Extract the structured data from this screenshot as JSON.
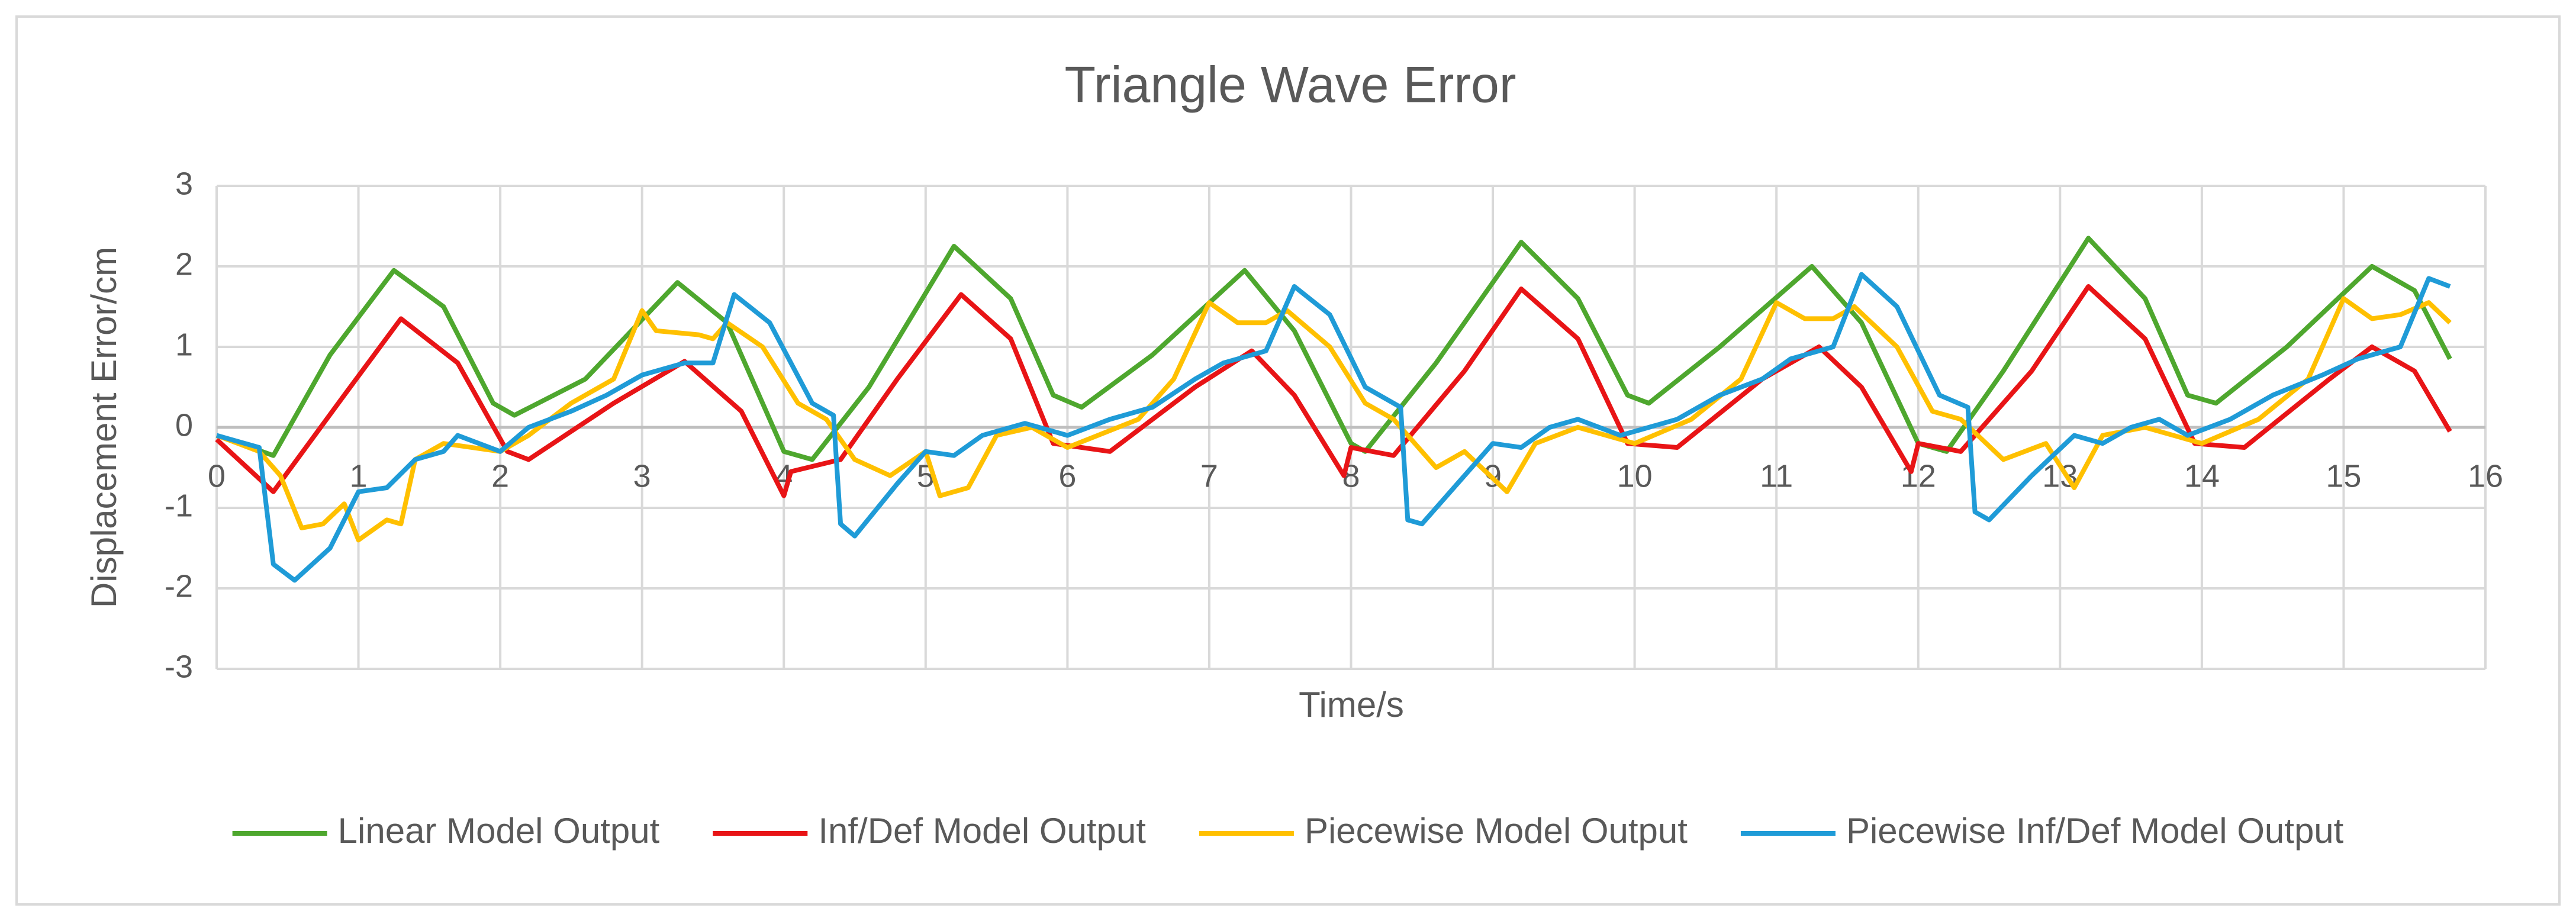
{
  "chart_data": {
    "type": "line",
    "title": "Triangle Wave Error",
    "x_label": "Time/s",
    "y_label": "Displacement Error/cm",
    "xlim": [
      0,
      16
    ],
    "ylim": [
      -3,
      3
    ],
    "xticks": [
      0,
      1,
      2,
      3,
      4,
      5,
      6,
      7,
      8,
      9,
      10,
      11,
      12,
      13,
      14,
      15,
      16
    ],
    "yticks": [
      -3,
      -2,
      -1,
      0,
      1,
      2,
      3
    ],
    "grid": true,
    "legend": "bottom",
    "series": [
      {
        "name": "Linear Model Output",
        "color": "#4ea72e",
        "x": [
          0,
          0.4,
          0.8,
          1.25,
          1.6,
          1.95,
          2.1,
          2.6,
          3.25,
          3.6,
          4.0,
          4.2,
          4.6,
          5.2,
          5.6,
          5.9,
          6.1,
          6.6,
          7.25,
          7.6,
          8.0,
          8.1,
          8.6,
          9.2,
          9.6,
          9.95,
          10.1,
          10.6,
          11.25,
          11.6,
          12.0,
          12.2,
          12.6,
          13.2,
          13.6,
          13.9,
          14.1,
          14.6,
          15.2,
          15.5,
          15.75
        ],
        "values": [
          -0.1,
          -0.35,
          0.9,
          1.95,
          1.5,
          0.3,
          0.15,
          0.6,
          1.8,
          1.3,
          -0.3,
          -0.4,
          0.5,
          2.25,
          1.6,
          0.4,
          0.25,
          0.9,
          1.95,
          1.2,
          -0.2,
          -0.3,
          0.8,
          2.3,
          1.6,
          0.4,
          0.3,
          1.0,
          2.0,
          1.3,
          -0.2,
          -0.3,
          0.7,
          2.35,
          1.6,
          0.4,
          0.3,
          1.0,
          2.0,
          1.7,
          0.85
        ]
      },
      {
        "name": "Inf/Def Model Output",
        "color": "#e81416",
        "x": [
          0,
          0.4,
          0.9,
          1.3,
          1.7,
          2.05,
          2.2,
          2.8,
          3.3,
          3.7,
          4.0,
          4.05,
          4.4,
          4.8,
          5.25,
          5.6,
          5.9,
          6.3,
          6.9,
          7.3,
          7.6,
          7.95,
          8.0,
          8.3,
          8.8,
          9.2,
          9.6,
          9.95,
          10.3,
          10.9,
          11.3,
          11.6,
          11.95,
          12.0,
          12.3,
          12.8,
          13.2,
          13.6,
          13.95,
          14.3,
          14.9,
          15.2,
          15.5,
          15.75
        ],
        "values": [
          -0.15,
          -0.8,
          0.4,
          1.35,
          0.8,
          -0.3,
          -0.4,
          0.3,
          0.82,
          0.2,
          -0.85,
          -0.55,
          -0.4,
          0.6,
          1.65,
          1.1,
          -0.2,
          -0.3,
          0.5,
          0.95,
          0.4,
          -0.6,
          -0.25,
          -0.35,
          0.7,
          1.72,
          1.1,
          -0.2,
          -0.25,
          0.6,
          1.0,
          0.5,
          -0.55,
          -0.2,
          -0.3,
          0.7,
          1.75,
          1.1,
          -0.2,
          -0.25,
          0.6,
          1.0,
          0.7,
          -0.05
        ]
      },
      {
        "name": "Piecewise Model Output",
        "color": "#ffc000",
        "x": [
          0,
          0.3,
          0.45,
          0.6,
          0.75,
          0.9,
          1.0,
          1.2,
          1.3,
          1.4,
          1.6,
          2.0,
          2.2,
          2.5,
          2.8,
          3.0,
          3.1,
          3.4,
          3.5,
          3.6,
          3.85,
          4.1,
          4.3,
          4.5,
          4.75,
          5.0,
          5.1,
          5.3,
          5.5,
          5.75,
          6.0,
          6.5,
          6.75,
          7.0,
          7.2,
          7.4,
          7.55,
          7.85,
          8.1,
          8.3,
          8.6,
          8.8,
          9.1,
          9.3,
          9.6,
          10.0,
          10.4,
          10.75,
          11.0,
          11.2,
          11.4,
          11.55,
          11.85,
          12.1,
          12.3,
          12.6,
          12.9,
          13.1,
          13.3,
          13.6,
          14.0,
          14.4,
          14.75,
          15.0,
          15.2,
          15.4,
          15.6,
          15.75
        ],
        "values": [
          -0.1,
          -0.3,
          -0.6,
          -1.25,
          -1.2,
          -0.95,
          -1.4,
          -1.15,
          -1.2,
          -0.4,
          -0.2,
          -0.3,
          -0.1,
          0.3,
          0.6,
          1.45,
          1.2,
          1.15,
          1.1,
          1.3,
          1.0,
          0.3,
          0.1,
          -0.4,
          -0.6,
          -0.3,
          -0.85,
          -0.75,
          -0.1,
          0,
          -0.25,
          0.1,
          0.6,
          1.55,
          1.3,
          1.3,
          1.45,
          1.0,
          0.3,
          0.1,
          -0.5,
          -0.3,
          -0.8,
          -0.2,
          0,
          -0.2,
          0.1,
          0.6,
          1.55,
          1.35,
          1.35,
          1.5,
          1.0,
          0.2,
          0.1,
          -0.4,
          -0.2,
          -0.75,
          -0.1,
          0,
          -0.2,
          0.1,
          0.6,
          1.6,
          1.35,
          1.4,
          1.55,
          1.3
        ]
      },
      {
        "name": "Piecewise Inf/Def Model Output",
        "color": "#1f9bd7",
        "x": [
          0,
          0.3,
          0.4,
          0.55,
          0.8,
          1.0,
          1.2,
          1.4,
          1.6,
          1.7,
          2.0,
          2.2,
          2.5,
          2.75,
          3.0,
          3.3,
          3.5,
          3.65,
          3.9,
          4.2,
          4.35,
          4.4,
          4.5,
          4.8,
          5.0,
          5.2,
          5.4,
          5.7,
          6.0,
          6.3,
          6.6,
          6.9,
          7.1,
          7.4,
          7.6,
          7.85,
          8.1,
          8.35,
          8.4,
          8.5,
          8.75,
          9.0,
          9.2,
          9.4,
          9.6,
          9.9,
          10.3,
          10.6,
          10.9,
          11.1,
          11.4,
          11.6,
          11.85,
          12.15,
          12.35,
          12.4,
          12.5,
          12.8,
          13.1,
          13.3,
          13.5,
          13.7,
          13.9,
          14.2,
          14.5,
          14.85,
          15.1,
          15.4,
          15.6,
          15.75
        ],
        "values": [
          -0.1,
          -0.25,
          -1.7,
          -1.9,
          -1.5,
          -0.8,
          -0.75,
          -0.4,
          -0.3,
          -0.1,
          -0.3,
          0,
          0.2,
          0.4,
          0.65,
          0.8,
          0.8,
          1.65,
          1.3,
          0.3,
          0.15,
          -1.2,
          -1.35,
          -0.7,
          -0.3,
          -0.35,
          -0.1,
          0.05,
          -0.1,
          0.1,
          0.25,
          0.6,
          0.8,
          0.95,
          1.75,
          1.4,
          0.5,
          0.25,
          -1.15,
          -1.2,
          -0.7,
          -0.2,
          -0.25,
          0,
          0.1,
          -0.1,
          0.1,
          0.4,
          0.6,
          0.85,
          1.0,
          1.9,
          1.5,
          0.4,
          0.25,
          -1.05,
          -1.15,
          -0.6,
          -0.1,
          -0.2,
          0,
          0.1,
          -0.1,
          0.1,
          0.4,
          0.65,
          0.85,
          1.0,
          1.85,
          1.75
        ]
      }
    ]
  }
}
